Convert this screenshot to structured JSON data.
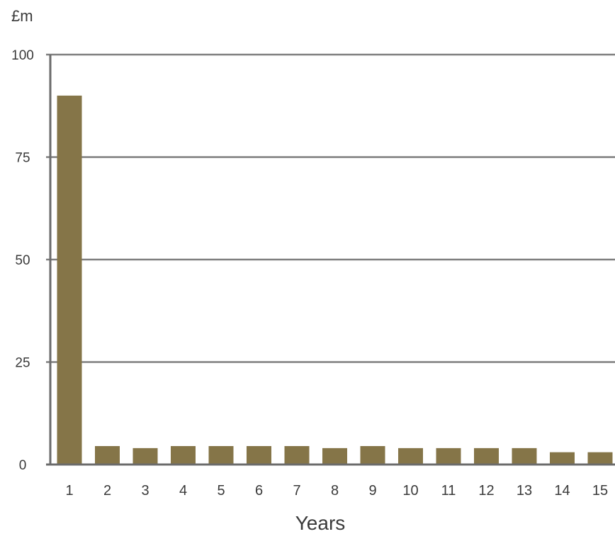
{
  "chart_data": {
    "type": "bar",
    "title": "",
    "unit_label": "£m",
    "xlabel": "Years",
    "ylabel": "",
    "categories": [
      "1",
      "2",
      "3",
      "4",
      "5",
      "6",
      "7",
      "8",
      "9",
      "10",
      "11",
      "12",
      "13",
      "14",
      "15"
    ],
    "values": [
      90,
      4.5,
      4,
      4.5,
      4.5,
      4.5,
      4.5,
      4,
      4.5,
      4,
      4,
      4,
      4,
      3,
      3
    ],
    "ylim": [
      0,
      100
    ],
    "yticks": [
      0,
      25,
      50,
      75,
      100
    ],
    "ytick_labels": [
      "0",
      "25",
      "50",
      "75",
      "100"
    ],
    "grid": true,
    "legend": "none",
    "colors": {
      "bar": "#857548",
      "grid": "#7f7f7f",
      "axis": "#6b6b6b",
      "text": "#3a3a3a"
    }
  }
}
